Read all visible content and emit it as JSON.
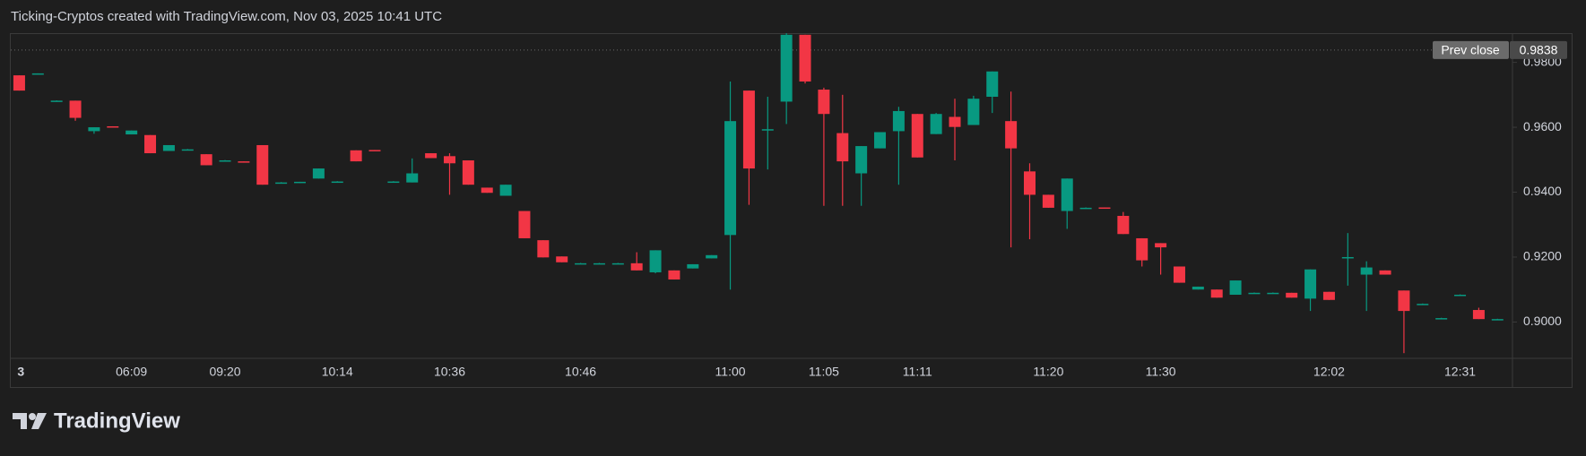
{
  "header": {
    "title": "Ticking-Cryptos created with TradingView.com, Nov 03, 2025 10:41 UTC"
  },
  "footer": {
    "brand": "TradingView"
  },
  "chart_data": {
    "type": "candlestick",
    "up_color": "#089981",
    "down_color": "#f23645",
    "categories": [
      "3",
      null,
      null,
      null,
      null,
      null,
      "06:09",
      null,
      null,
      null,
      null,
      "09:20",
      null,
      null,
      null,
      null,
      null,
      "10:14",
      null,
      null,
      null,
      null,
      null,
      "10:36",
      null,
      null,
      null,
      null,
      null,
      null,
      "10:46",
      null,
      null,
      null,
      null,
      null,
      null,
      null,
      "11:00",
      null,
      null,
      null,
      null,
      "11:05",
      null,
      null,
      null,
      null,
      "11:11",
      null,
      null,
      null,
      null,
      null,
      null,
      "11:20",
      null,
      null,
      null,
      null,
      null,
      "11:30",
      null,
      null,
      null,
      null,
      null,
      null,
      null,
      null,
      "12:02",
      null,
      null,
      null,
      null,
      null,
      null,
      "12:31",
      null,
      null
    ],
    "open": [
      0.976,
      0.9765,
      0.9682,
      0.9682,
      0.9588,
      0.9603,
      0.9578,
      0.9576,
      0.9527,
      0.9532,
      0.9517,
      0.9498,
      0.9495,
      0.9545,
      0.943,
      0.9428,
      0.9442,
      0.9433,
      0.9529,
      0.953,
      0.9433,
      0.943,
      0.952,
      0.9511,
      0.9498,
      0.9414,
      0.9389,
      0.9342,
      0.9252,
      0.9202,
      0.9181,
      0.9181,
      0.9181,
      0.9181,
      0.9153,
      0.9159,
      0.9165,
      0.9196,
      0.9268,
      0.9713,
      0.959,
      0.9679,
      0.9885,
      0.9716,
      0.9582,
      0.9458,
      0.9535,
      0.9588,
      0.9641,
      0.9579,
      0.9632,
      0.9607,
      0.9694,
      0.9619,
      0.9464,
      0.9392,
      0.9342,
      0.9352,
      0.9353,
      0.9327,
      0.9258,
      0.9243,
      0.9171,
      0.91,
      0.91,
      0.9084,
      0.909,
      0.909,
      0.909,
      0.9072,
      0.9093,
      0.9198,
      0.9146,
      0.9159,
      0.9097,
      0.9056,
      0.9012,
      0.9084,
      0.9037,
      0.9009
    ],
    "high": [
      0.976,
      0.9766,
      0.9683,
      0.9682,
      0.96,
      0.9603,
      0.959,
      0.9576,
      0.9545,
      0.9533,
      0.9517,
      0.9499,
      0.9495,
      0.9545,
      0.9431,
      0.9432,
      0.9473,
      0.9434,
      0.9529,
      0.953,
      0.9434,
      0.9504,
      0.952,
      0.952,
      0.9498,
      0.9414,
      0.9423,
      0.9342,
      0.9252,
      0.9202,
      0.9182,
      0.9182,
      0.9182,
      0.9215,
      0.9221,
      0.9159,
      0.9178,
      0.9206,
      0.9741,
      0.9713,
      0.9694,
      0.989,
      0.9885,
      0.9722,
      0.97,
      0.9542,
      0.9585,
      0.9663,
      0.9641,
      0.9644,
      0.9688,
      0.9697,
      0.9772,
      0.971,
      0.9489,
      0.9392,
      0.9442,
      0.9353,
      0.9353,
      0.9339,
      0.9258,
      0.9243,
      0.9171,
      0.9109,
      0.91,
      0.9128,
      0.9091,
      0.9091,
      0.909,
      0.9162,
      0.9093,
      0.9274,
      0.9187,
      0.9159,
      0.9097,
      0.9057,
      0.9013,
      0.9085,
      0.9044,
      0.901
    ],
    "low": [
      0.9713,
      0.9765,
      0.9681,
      0.962,
      0.958,
      0.96,
      0.9578,
      0.952,
      0.9527,
      0.9531,
      0.9483,
      0.9497,
      0.9494,
      0.9423,
      0.9429,
      0.9428,
      0.9442,
      0.9432,
      0.9495,
      0.9527,
      0.9432,
      0.943,
      0.9505,
      0.9392,
      0.9423,
      0.9398,
      0.9389,
      0.9258,
      0.9199,
      0.9184,
      0.918,
      0.918,
      0.918,
      0.9159,
      0.915,
      0.9131,
      0.9165,
      0.9196,
      0.91,
      0.9361,
      0.947,
      0.961,
      0.9735,
      0.9358,
      0.9358,
      0.9358,
      0.9535,
      0.9423,
      0.9507,
      0.9579,
      0.9498,
      0.9607,
      0.9644,
      0.923,
      0.9255,
      0.9352,
      0.9287,
      0.9351,
      0.935,
      0.9271,
      0.9171,
      0.9146,
      0.9121,
      0.91,
      0.9075,
      0.9084,
      0.9089,
      0.9089,
      0.9075,
      0.9034,
      0.9068,
      0.9112,
      0.9034,
      0.9146,
      0.8904,
      0.9055,
      0.9011,
      0.9083,
      0.9009,
      0.9008
    ],
    "close": [
      0.9713,
      0.9766,
      0.9682,
      0.9629,
      0.96,
      0.96,
      0.959,
      0.952,
      0.9545,
      0.9532,
      0.9483,
      0.9498,
      0.9494,
      0.9423,
      0.943,
      0.9432,
      0.9473,
      0.9433,
      0.9495,
      0.9527,
      0.9433,
      0.9458,
      0.9505,
      0.9489,
      0.9423,
      0.9398,
      0.9423,
      0.9258,
      0.9199,
      0.9184,
      0.9181,
      0.9181,
      0.9181,
      0.9159,
      0.9221,
      0.9131,
      0.9178,
      0.9206,
      0.9619,
      0.9473,
      0.9594,
      0.9885,
      0.9741,
      0.9641,
      0.9495,
      0.9542,
      0.9585,
      0.965,
      0.9507,
      0.9641,
      0.9601,
      0.9688,
      0.9772,
      0.9535,
      0.9392,
      0.9352,
      0.9442,
      0.9352,
      0.935,
      0.9271,
      0.919,
      0.923,
      0.9121,
      0.9109,
      0.9075,
      0.9128,
      0.909,
      0.909,
      0.9075,
      0.9162,
      0.9068,
      0.92,
      0.9168,
      0.9146,
      0.9034,
      0.9056,
      0.9012,
      0.9084,
      0.9009,
      0.9009
    ],
    "ylim": [
      0.8888,
      0.989
    ],
    "yticks": [
      {
        "value": 0.9,
        "label": "0.9000"
      },
      {
        "value": 0.92,
        "label": "0.9200"
      },
      {
        "value": 0.94,
        "label": "0.9400"
      },
      {
        "value": 0.96,
        "label": "0.9600"
      },
      {
        "value": 0.98,
        "label": "0.9800"
      }
    ],
    "grid": false,
    "prev_close": {
      "label": "Prev close",
      "value": 0.9838
    }
  }
}
